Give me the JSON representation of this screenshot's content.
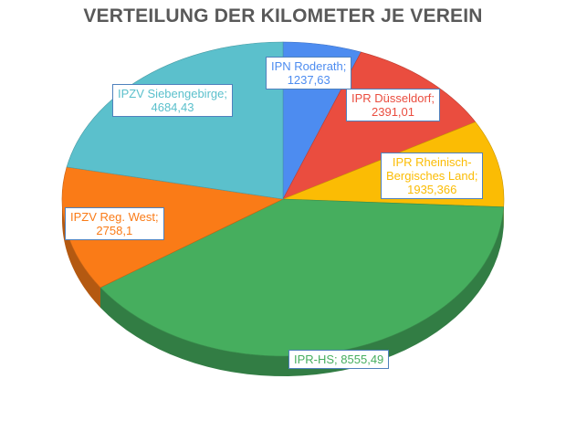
{
  "chart_data": {
    "type": "pie",
    "title": "VERTEILUNG DER KILOMETER JE VEREIN",
    "unit": "km",
    "slices": [
      {
        "name": "IPN Roderath",
        "value_label": "1237,63",
        "value": 1237.63,
        "color": "#4d8cf0"
      },
      {
        "name": "IPR Düsseldorf",
        "value_label": "2391,01",
        "value": 2391.01,
        "color": "#ea4d3f"
      },
      {
        "name": "IPR Rheinisch-Bergisches Land",
        "name_lines": [
          "IPR Rheinisch-",
          "Bergisches Land;"
        ],
        "value_label": "1935,366",
        "value": 1935.366,
        "color": "#fbbc04"
      },
      {
        "name": "IPR-HS",
        "value_label": "8555,49",
        "value": 8555.49,
        "color": "#46ae5e"
      },
      {
        "name": "IPZV Reg. West",
        "value_label": "2758,1",
        "value": 2758.1,
        "color": "#fa7b17"
      },
      {
        "name": "IPZV Siebengebirge",
        "value_label": "4684,43",
        "value": 4684.43,
        "color": "#5bc0cc"
      }
    ]
  }
}
